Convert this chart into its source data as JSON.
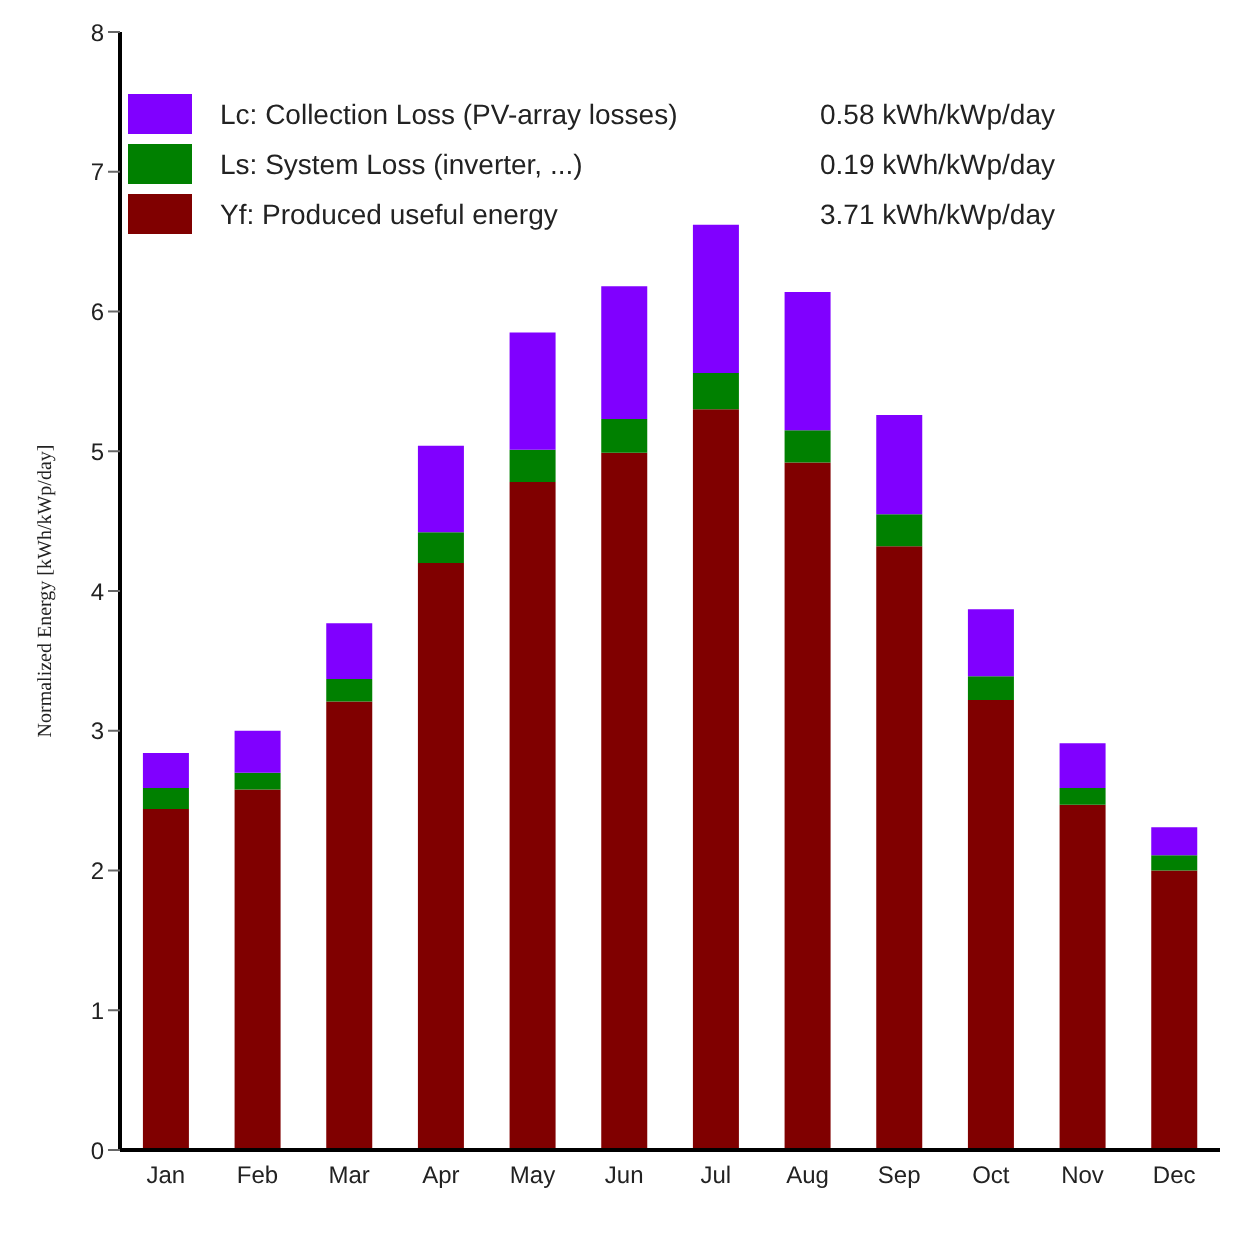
{
  "chart_data": {
    "type": "bar",
    "stacked": true,
    "ylabel": "Normalized Energy [kWh/kWp/day]",
    "categories": [
      "Jan",
      "Feb",
      "Mar",
      "Apr",
      "May",
      "Jun",
      "Jul",
      "Aug",
      "Sep",
      "Oct",
      "Nov",
      "Dec"
    ],
    "series": [
      {
        "name": "Yf: Produced useful energy",
        "color": "#800000",
        "values": [
          2.44,
          2.58,
          3.21,
          4.2,
          4.78,
          4.99,
          5.3,
          4.92,
          4.32,
          3.22,
          2.47,
          2.0
        ]
      },
      {
        "name": "Ls: System Loss (inverter, ...)",
        "color": "#008000",
        "values": [
          0.15,
          0.12,
          0.16,
          0.22,
          0.23,
          0.24,
          0.26,
          0.23,
          0.23,
          0.17,
          0.12,
          0.11
        ]
      },
      {
        "name": "Lc: Collection Loss (PV-array losses)",
        "color": "#8000ff",
        "values": [
          0.25,
          0.3,
          0.4,
          0.62,
          0.84,
          0.95,
          1.06,
          0.99,
          0.71,
          0.48,
          0.32,
          0.2
        ]
      }
    ],
    "annotations": [
      "3.71 kWh/kWp/day",
      "0.19 kWh/kWp/day",
      "0.58 kWh/kWp/day"
    ],
    "ylim": [
      0,
      8
    ],
    "yticks": [
      0,
      1,
      2,
      3,
      4,
      5,
      6,
      7,
      8
    ],
    "grid": false,
    "legend": "top left"
  }
}
